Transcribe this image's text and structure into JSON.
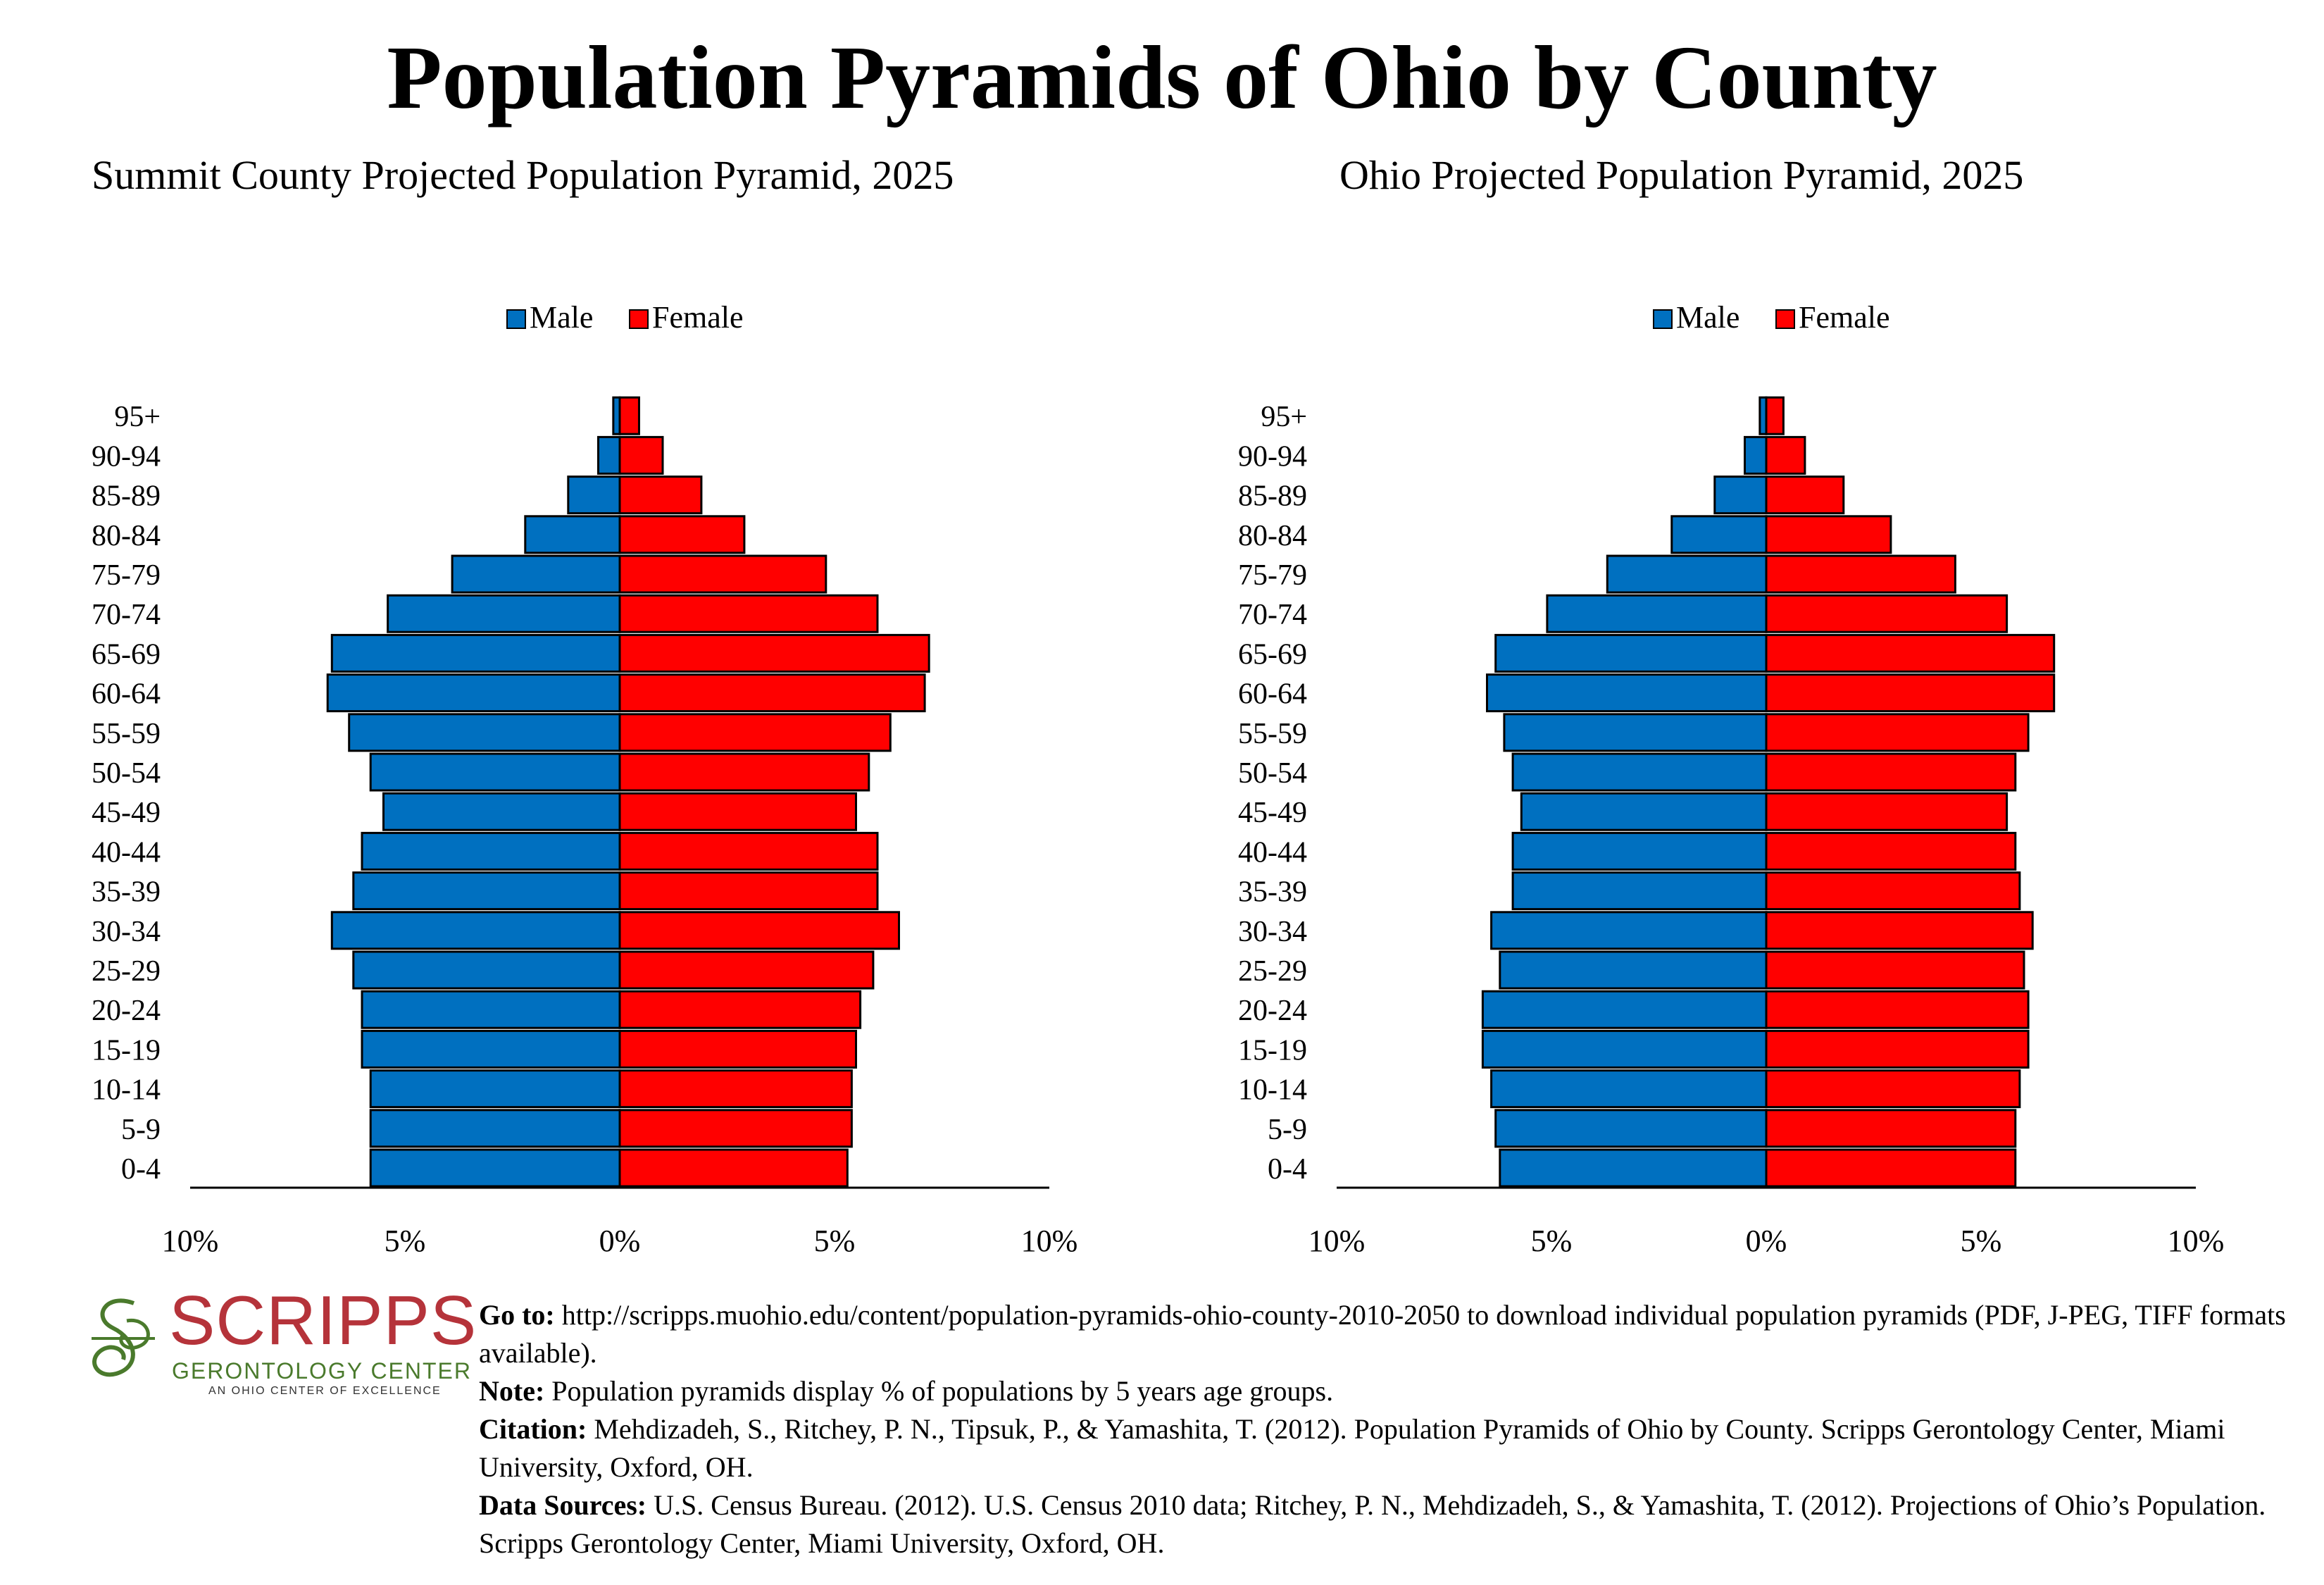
{
  "title": "Population Pyramids of Ohio by County",
  "chart_data": [
    {
      "type": "bar",
      "orientation": "horizontal-pyramid",
      "title": "Summit County Projected Population Pyramid, 2025",
      "categories": [
        "0-4",
        "5-9",
        "10-14",
        "15-19",
        "20-24",
        "25-29",
        "30-34",
        "35-39",
        "40-44",
        "45-49",
        "50-54",
        "55-59",
        "60-64",
        "65-69",
        "70-74",
        "75-79",
        "80-84",
        "85-89",
        "90-94",
        "95+"
      ],
      "series": [
        {
          "name": "Male",
          "color": "#0070c0",
          "values": [
            5.8,
            5.8,
            5.8,
            6.0,
            6.0,
            6.2,
            6.7,
            6.2,
            6.0,
            5.5,
            5.8,
            6.3,
            6.8,
            6.7,
            5.4,
            3.9,
            2.2,
            1.2,
            0.5,
            0.15
          ]
        },
        {
          "name": "Female",
          "color": "#ff0000",
          "values": [
            5.3,
            5.4,
            5.4,
            5.5,
            5.6,
            5.9,
            6.5,
            6.0,
            6.0,
            5.5,
            5.8,
            6.3,
            7.1,
            7.2,
            6.0,
            4.8,
            2.9,
            1.9,
            1.0,
            0.45
          ]
        }
      ],
      "xlim": [
        -10,
        10
      ],
      "xticks": [
        "10%",
        "5%",
        "0%",
        "5%",
        "10%"
      ],
      "legend": "top-center"
    },
    {
      "type": "bar",
      "orientation": "horizontal-pyramid",
      "title": "Ohio Projected Population Pyramid, 2025",
      "categories": [
        "0-4",
        "5-9",
        "10-14",
        "15-19",
        "20-24",
        "25-29",
        "30-34",
        "35-39",
        "40-44",
        "45-49",
        "50-54",
        "55-59",
        "60-64",
        "65-69",
        "70-74",
        "75-79",
        "80-84",
        "85-89",
        "90-94",
        "95+"
      ],
      "series": [
        {
          "name": "Male",
          "color": "#0070c0",
          "values": [
            6.2,
            6.3,
            6.4,
            6.6,
            6.6,
            6.2,
            6.4,
            5.9,
            5.9,
            5.7,
            5.9,
            6.1,
            6.5,
            6.3,
            5.1,
            3.7,
            2.2,
            1.2,
            0.5,
            0.15
          ]
        },
        {
          "name": "Female",
          "color": "#ff0000",
          "values": [
            5.8,
            5.8,
            5.9,
            6.1,
            6.1,
            6.0,
            6.2,
            5.9,
            5.8,
            5.6,
            5.8,
            6.1,
            6.7,
            6.7,
            5.6,
            4.4,
            2.9,
            1.8,
            0.9,
            0.4
          ]
        }
      ],
      "xlim": [
        -10,
        10
      ],
      "xticks": [
        "10%",
        "5%",
        "0%",
        "5%",
        "10%"
      ],
      "legend": "top-center"
    }
  ],
  "logo": {
    "name": "SCRIPPS",
    "subtitle": "GERONTOLOGY CENTER",
    "tagline": "AN OHIO CENTER OF EXCELLENCE",
    "color_primary": "#b5333a",
    "color_secondary": "#4a7a2c"
  },
  "footer": {
    "goto_label": "Go to:",
    "goto_text": " http://scripps.muohio.edu/content/population-pyramids-ohio-county-2010-2050 to download individual population pyramids (PDF, J-PEG, TIFF formats available).",
    "note_label": "Note:",
    "note_text": " Population pyramids display % of populations by 5 years age groups.",
    "citation_label": "Citation:",
    "citation_text": " Mehdizadeh, S., Ritchey, P. N., Tipsuk, P., & Yamashita, T. (2012). Population Pyramids of Ohio by County. Scripps Gerontology Center, Miami University, Oxford, OH.",
    "sources_label": "Data Sources:",
    "sources_text": " U.S. Census Bureau. (2012). U.S. Census 2010 data; Ritchey, P. N., Mehdizadeh, S., & Yamashita, T. (2012). Projections of Ohio’s Population. Scripps Gerontology Center, Miami University, Oxford, OH."
  }
}
